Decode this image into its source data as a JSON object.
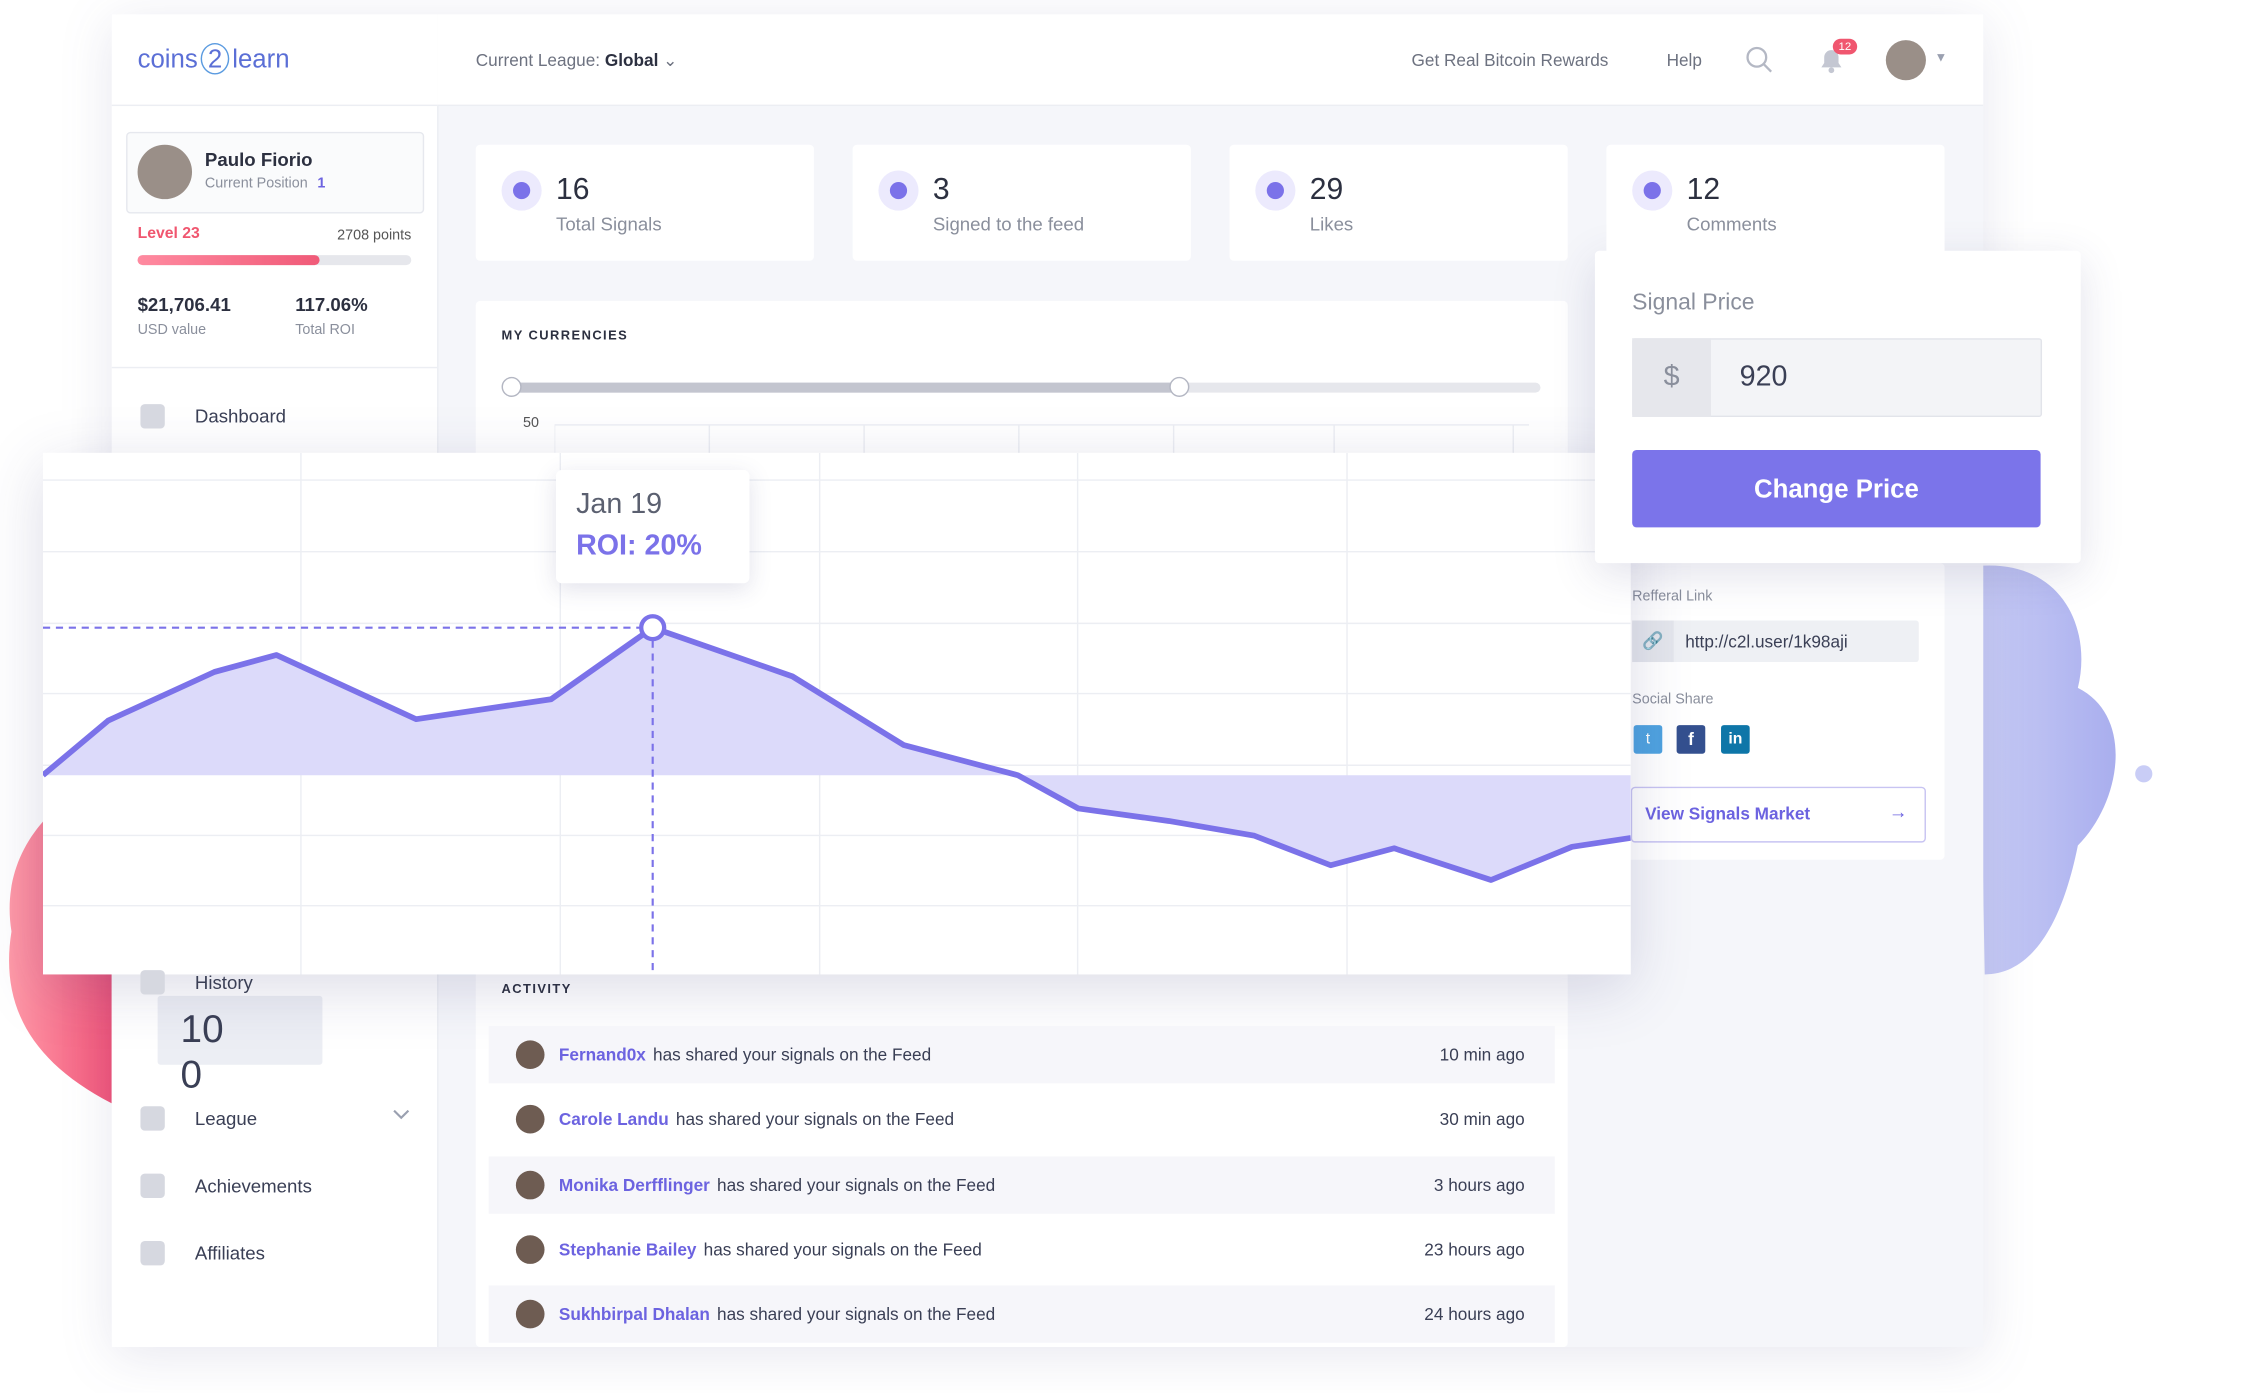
{
  "header": {
    "logo": [
      "coins",
      "2",
      "learn"
    ],
    "league_label": "Current League:",
    "league": "Global",
    "links": [
      "Get Real Bitcoin Rewards",
      "Help"
    ],
    "notifications": "12"
  },
  "profile": {
    "name": "Paulo Fiorio",
    "position_label": "Current Position",
    "position": "1",
    "level": "Level 23",
    "points": "2708 points",
    "usd": "$21,706.41",
    "usd_label": "USD value",
    "roi": "117.06%",
    "roi_label": "Total ROI"
  },
  "nav": {
    "items": [
      "Dashboard",
      "History",
      "League",
      "Achievements",
      "Affiliates"
    ],
    "badge": "100"
  },
  "stats": [
    {
      "value": "16",
      "label": "Total Signals"
    },
    {
      "value": "3",
      "label": "Signed to the feed"
    },
    {
      "value": "29",
      "label": "Likes"
    },
    {
      "value": "12",
      "label": "Comments"
    }
  ],
  "currencies": {
    "title": "MY CURRENCIES",
    "axis_label": "50"
  },
  "signal": {
    "title": "Signal Price",
    "currency": "$",
    "price": "920",
    "button": "Change Price",
    "referral_label": "Refferal Link",
    "referral": "http://c2l.user/1k98aji",
    "social_label": "Social Share",
    "market_button": "View Signals Market"
  },
  "activity": {
    "title": "ACTIVITY",
    "items": [
      {
        "user": "Fernand0x",
        "text": "has shared your signals on the Feed",
        "time": "10 min ago"
      },
      {
        "user": "Carole Landu",
        "text": "has shared your signals on the Feed",
        "time": "30 min ago"
      },
      {
        "user": "Monika Derfflinger",
        "text": "has shared your signals on the Feed",
        "time": "3 hours ago"
      },
      {
        "user": "Stephanie Bailey",
        "text": "has shared your signals on the Feed",
        "time": "23 hours ago"
      },
      {
        "user": "Sukhbirpal Dhalan",
        "text": "has shared your signals on the Feed",
        "time": "24 hours ago"
      }
    ]
  },
  "chart_data": {
    "type": "line",
    "color": "#7b72e9",
    "fill": "#dcdafa",
    "x": [
      0,
      4.1,
      10.8,
      14.7,
      23.5,
      32,
      38.4,
      47.2,
      54.2,
      61.4,
      65.2,
      70.9,
      76.3,
      81.1,
      85.1,
      91.2,
      96.3,
      100
    ],
    "values": [
      0,
      7.4,
      14,
      16.3,
      7.6,
      10.3,
      20,
      13.4,
      4.1,
      0,
      -4.5,
      -6.2,
      -8.2,
      -12.2,
      -9.9,
      -14.2,
      -9.7,
      -8.5
    ],
    "xlim": [
      0,
      100
    ],
    "ylim": [
      -27,
      43.7
    ],
    "tooltip": {
      "label": "Jan 19",
      "value_label": "ROI: 20%"
    }
  }
}
